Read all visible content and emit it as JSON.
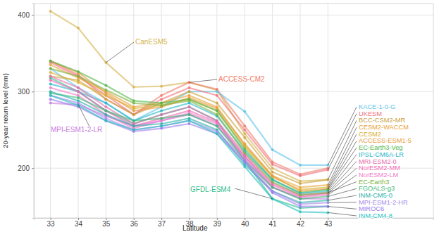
{
  "chart_data": {
    "type": "line",
    "x_label": "Latitude",
    "y_label": "20-year return level (mm)",
    "x": [
      33,
      34,
      35,
      36,
      37,
      38,
      39,
      40,
      41,
      42,
      43
    ],
    "xlim": [
      32.4,
      46.8
    ],
    "xticks": [
      33,
      34,
      35,
      36,
      37,
      38,
      39,
      40,
      41,
      42,
      43
    ],
    "ylim": [
      135,
      415
    ],
    "yticks": [
      200,
      300,
      400
    ],
    "grid": true,
    "marker": "circle",
    "series": [
      {
        "name": "CanESM5",
        "color": "#d4b24a",
        "values": [
          405,
          383,
          338,
          306,
          307,
          312,
          302,
          245,
          200,
          183,
          185
        ]
      },
      {
        "name": "ACCESS-CM2",
        "color": "#f07c6a",
        "values": [
          340,
          322,
          290,
          270,
          295,
          312,
          303,
          255,
          208,
          192,
          200
        ]
      },
      {
        "name": "MPI-ESM1-2-LR",
        "color": "#c77cde",
        "values": [
          285,
          283,
          268,
          255,
          262,
          270,
          255,
          215,
          175,
          160,
          160
        ]
      },
      {
        "name": "GFDL-ESM4",
        "color": "#2fbf8f",
        "values": [
          318,
          300,
          275,
          258,
          270,
          280,
          262,
          210,
          160,
          148,
          150
        ]
      },
      {
        "name": "KACE-1-0-G",
        "color": "#5ec3e8",
        "values": [
          330,
          305,
          285,
          262,
          280,
          300,
          300,
          274,
          224,
          204,
          204
        ]
      },
      {
        "name": "UKESM",
        "color": "#f0727f",
        "values": [
          338,
          320,
          295,
          270,
          290,
          305,
          295,
          250,
          205,
          190,
          198
        ]
      },
      {
        "name": "BCC-CSM2-MR",
        "color": "#c9a040",
        "values": [
          320,
          315,
          290,
          270,
          285,
          300,
          285,
          240,
          195,
          180,
          185
        ]
      },
      {
        "name": "CESM2-WACCM",
        "color": "#e8a33a",
        "values": [
          335,
          318,
          300,
          280,
          285,
          295,
          280,
          230,
          190,
          175,
          178
        ]
      },
      {
        "name": "CESM2",
        "color": "#d6b02e",
        "values": [
          325,
          312,
          295,
          278,
          282,
          290,
          275,
          228,
          188,
          172,
          175
        ]
      },
      {
        "name": "ACCESS-ESM1-5",
        "color": "#e89a3a",
        "values": [
          340,
          325,
          298,
          275,
          280,
          292,
          278,
          232,
          190,
          170,
          173
        ]
      },
      {
        "name": "EC-Earth3-Veg",
        "color": "#52b848",
        "values": [
          340,
          326,
          308,
          288,
          285,
          290,
          275,
          225,
          185,
          168,
          172
        ]
      },
      {
        "name": "IPSL-CM6A-LR",
        "color": "#25b5c8",
        "values": [
          310,
          300,
          285,
          262,
          275,
          285,
          268,
          222,
          185,
          167,
          170
        ]
      },
      {
        "name": "MRI-ESM2-0",
        "color": "#e56fae",
        "values": [
          320,
          305,
          280,
          258,
          270,
          280,
          262,
          218,
          180,
          165,
          168
        ]
      },
      {
        "name": "NorESM2-MM",
        "color": "#f066b0",
        "values": [
          315,
          300,
          275,
          255,
          265,
          275,
          260,
          215,
          178,
          163,
          167
        ]
      },
      {
        "name": "NorESM2-LM",
        "color": "#f07bc8",
        "values": [
          305,
          295,
          270,
          252,
          262,
          272,
          258,
          212,
          175,
          162,
          165
        ]
      },
      {
        "name": "EC-Earth3",
        "color": "#7cb340",
        "values": [
          330,
          320,
          302,
          285,
          282,
          288,
          270,
          220,
          182,
          165,
          168
        ]
      },
      {
        "name": "FGOALS-g3",
        "color": "#3cb878",
        "values": [
          298,
          292,
          275,
          262,
          265,
          270,
          255,
          210,
          175,
          160,
          163
        ]
      },
      {
        "name": "INM-CM5-0",
        "color": "#2ab0a8",
        "values": [
          300,
          288,
          270,
          255,
          258,
          265,
          250,
          205,
          170,
          155,
          158
        ]
      },
      {
        "name": "MPI-ESM1-2-HR",
        "color": "#a38ce8",
        "values": [
          295,
          285,
          265,
          250,
          255,
          262,
          248,
          210,
          170,
          153,
          155
        ]
      },
      {
        "name": "MIROC6",
        "color": "#9c7cf0",
        "values": [
          290,
          280,
          262,
          248,
          252,
          258,
          245,
          208,
          168,
          150,
          150
        ]
      },
      {
        "name": "INM-CM4-8",
        "color": "#28bfbf",
        "values": [
          295,
          282,
          262,
          250,
          255,
          262,
          245,
          202,
          160,
          143,
          142
        ]
      }
    ]
  }
}
